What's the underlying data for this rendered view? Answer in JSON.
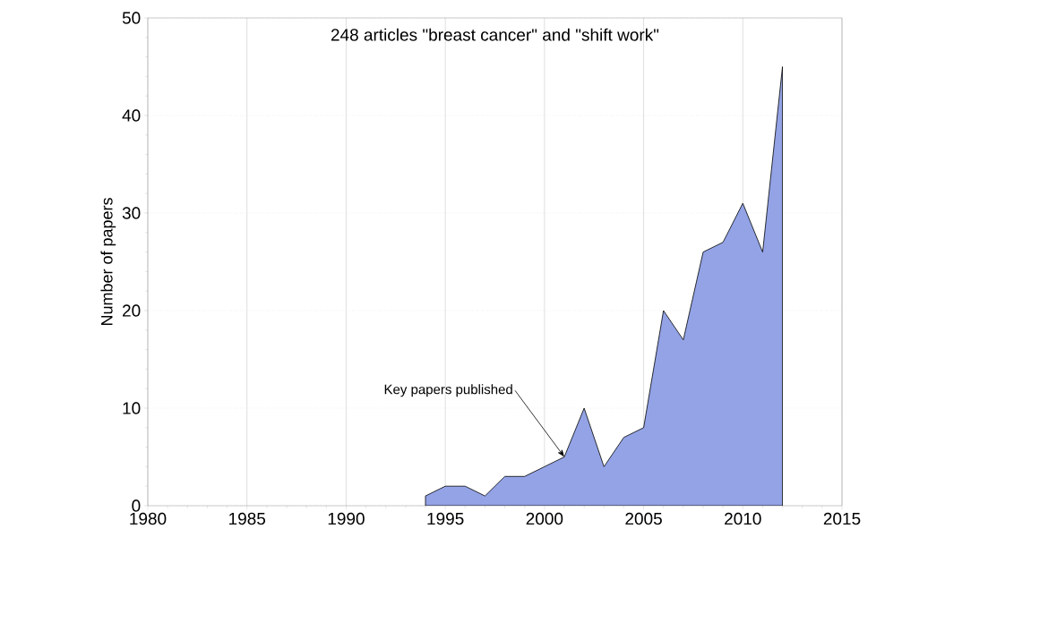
{
  "chart_data": {
    "type": "area",
    "title": "248 articles \"breast cancer\" and \"shift work\"",
    "ylabel": "Number of papers",
    "x": [
      1994,
      1995,
      1996,
      1997,
      1998,
      1999,
      2000,
      2001,
      2002,
      2003,
      2004,
      2005,
      2006,
      2007,
      2008,
      2009,
      2010,
      2011,
      2012
    ],
    "values": [
      1,
      2,
      2,
      1,
      3,
      3,
      4,
      5,
      10,
      4,
      7,
      8,
      20,
      17,
      26,
      27,
      31,
      26,
      45
    ],
    "color": "#93a3e6",
    "xlim": [
      1980,
      2015
    ],
    "xticks": [
      1980,
      1985,
      1990,
      1995,
      2000,
      2005,
      2010,
      2015
    ],
    "ylim": [
      0,
      50
    ],
    "yticks": [
      0,
      10,
      20,
      30,
      40,
      50
    ],
    "grid": true,
    "annotations": [
      {
        "text": "Key papers published",
        "x": 2001,
        "y": 5
      }
    ]
  }
}
